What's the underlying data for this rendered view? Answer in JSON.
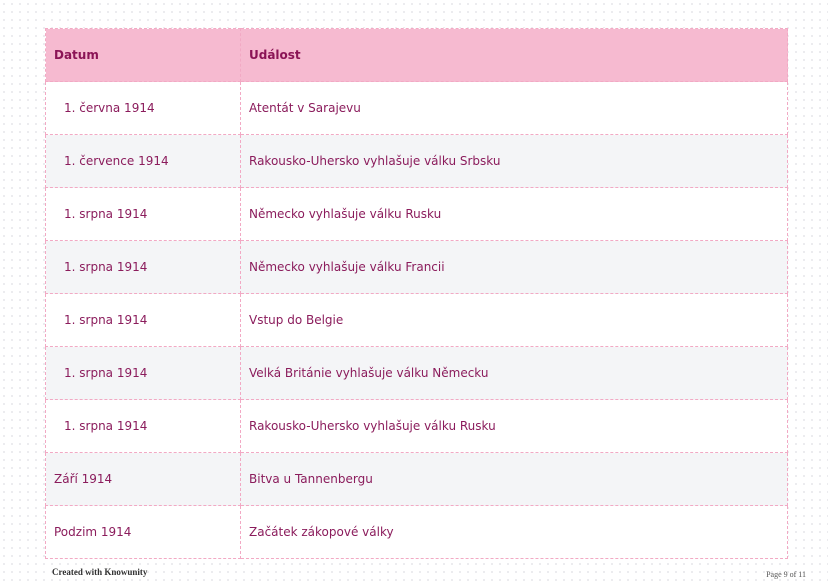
{
  "table": {
    "headers": [
      "Datum",
      "Událost"
    ],
    "rows": [
      {
        "date": "1. června 1914",
        "event": "Atentát v Sarajevu",
        "indent": true
      },
      {
        "date": "1. července 1914",
        "event": "Rakousko-Uhersko vyhlašuje válku Srbsku",
        "indent": true
      },
      {
        "date": "1. srpna 1914",
        "event": "Německo vyhlašuje válku Rusku",
        "indent": true
      },
      {
        "date": "1. srpna 1914",
        "event": "Německo vyhlašuje válku Francii",
        "indent": true
      },
      {
        "date": "1. srpna 1914",
        "event": "Vstup do Belgie",
        "indent": true
      },
      {
        "date": "1. srpna 1914",
        "event": "Velká Británie vyhlašuje válku Německu",
        "indent": true
      },
      {
        "date": "1. srpna 1914",
        "event": "Rakousko-Uhersko vyhlašuje válku Rusku",
        "indent": true
      },
      {
        "date": "Září 1914",
        "event": "Bitva u Tannenbergu",
        "indent": false
      },
      {
        "date": "Podzim 1914",
        "event": "Začátek zákopové války",
        "indent": false
      }
    ]
  },
  "footer": {
    "credit": "Created with Knowunity",
    "page": "Page 9 of 11"
  },
  "colors": {
    "header_bg": "#f6bad0",
    "text": "#8b1c5c",
    "border": "#f2a9c4",
    "alt_row": "#f4f5f7"
  }
}
